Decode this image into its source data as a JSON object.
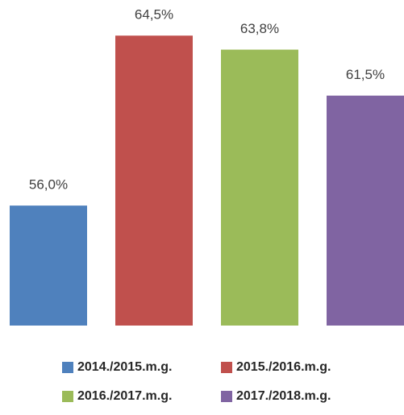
{
  "chart_data": {
    "type": "bar",
    "series": [
      {
        "name": "2014./2015.m.g.",
        "color": "#4f81bd",
        "values": [
          56.0
        ],
        "value_labels": [
          "56,0%"
        ]
      },
      {
        "name": "2015./2016.m.g.",
        "color": "#c0504d",
        "values": [
          64.5
        ],
        "value_labels": [
          "64,5%"
        ]
      },
      {
        "name": "2016./2017.m.g.",
        "color": "#9bbb59",
        "values": [
          63.8
        ],
        "value_labels": [
          "63,8%"
        ]
      },
      {
        "name": "2017./2018.m.g.",
        "color": "#8064a2",
        "values": [
          61.5
        ],
        "value_labels": [
          "61,5%"
        ]
      }
    ],
    "ylim": [
      50,
      66
    ]
  }
}
